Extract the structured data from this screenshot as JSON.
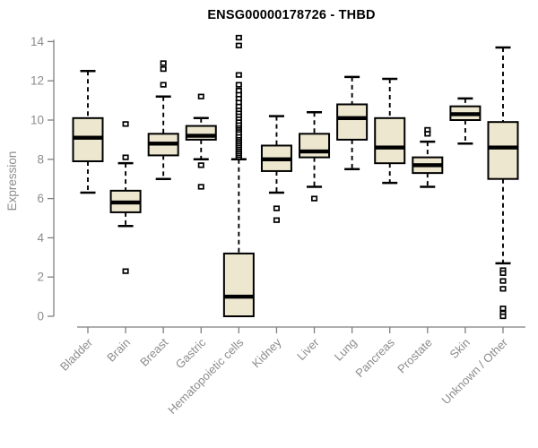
{
  "chart_data": {
    "type": "boxplot",
    "title": "ENSG00000178726 - THBD",
    "xlabel": "",
    "ylabel": "Expression",
    "ylim": [
      0,
      14
    ],
    "y_ticks": [
      0,
      2,
      4,
      6,
      8,
      10,
      12,
      14
    ],
    "grid": false,
    "legend": false,
    "categories": [
      "Bladder",
      "Brain",
      "Breast",
      "Gastric",
      "Hematopoietic cells",
      "Kidney",
      "Liver",
      "Lung",
      "Pancreas",
      "Prostate",
      "Skin",
      "Unknown / Other"
    ],
    "series": [
      {
        "name": "Bladder",
        "whisker_low": 6.3,
        "q1": 7.9,
        "median": 9.1,
        "q3": 10.1,
        "whisker_high": 12.5,
        "outliers": []
      },
      {
        "name": "Brain",
        "whisker_low": 4.6,
        "q1": 5.3,
        "median": 5.8,
        "q3": 6.4,
        "whisker_high": 7.8,
        "outliers": [
          9.8,
          8.1,
          2.3
        ]
      },
      {
        "name": "Breast",
        "whisker_low": 7.0,
        "q1": 8.2,
        "median": 8.8,
        "q3": 9.3,
        "whisker_high": 11.2,
        "outliers": [
          12.9,
          12.6,
          11.8
        ]
      },
      {
        "name": "Gastric",
        "whisker_low": 8.0,
        "q1": 9.0,
        "median": 9.2,
        "q3": 9.7,
        "whisker_high": 10.1,
        "outliers": [
          11.2,
          7.7,
          6.6
        ]
      },
      {
        "name": "Hematopoietic cells",
        "whisker_low": 0.0,
        "q1": 0.0,
        "median": 1.0,
        "q3": 3.2,
        "whisker_high": 8.0,
        "outliers": [
          8.1,
          8.2,
          8.3,
          8.4,
          8.5,
          8.6,
          8.7,
          8.8,
          8.9,
          9.0,
          9.1,
          9.2,
          9.35,
          9.5,
          9.6,
          9.7,
          9.8,
          9.95,
          10.1,
          10.25,
          10.4,
          10.55,
          10.7,
          10.9,
          11.1,
          11.3,
          11.5,
          11.8,
          12.3,
          13.8,
          14.2
        ]
      },
      {
        "name": "Kidney",
        "whisker_low": 6.3,
        "q1": 7.4,
        "median": 8.0,
        "q3": 8.7,
        "whisker_high": 10.2,
        "outliers": [
          5.5,
          4.9
        ]
      },
      {
        "name": "Liver",
        "whisker_low": 6.6,
        "q1": 8.1,
        "median": 8.4,
        "q3": 9.3,
        "whisker_high": 10.4,
        "outliers": [
          6.0
        ]
      },
      {
        "name": "Lung",
        "whisker_low": 7.5,
        "q1": 9.0,
        "median": 10.1,
        "q3": 10.8,
        "whisker_high": 12.2,
        "outliers": []
      },
      {
        "name": "Pancreas",
        "whisker_low": 6.8,
        "q1": 7.8,
        "median": 8.6,
        "q3": 10.1,
        "whisker_high": 12.1,
        "outliers": []
      },
      {
        "name": "Prostate",
        "whisker_low": 6.6,
        "q1": 7.3,
        "median": 7.7,
        "q3": 8.1,
        "whisker_high": 8.9,
        "outliers": [
          9.5,
          9.3
        ]
      },
      {
        "name": "Skin",
        "whisker_low": 8.8,
        "q1": 10.0,
        "median": 10.3,
        "q3": 10.7,
        "whisker_high": 11.1,
        "outliers": []
      },
      {
        "name": "Unknown / Other",
        "whisker_low": 2.7,
        "q1": 7.0,
        "median": 8.6,
        "q3": 9.9,
        "whisker_high": 13.7,
        "outliers": [
          2.35,
          2.2,
          1.8,
          1.4,
          0.4,
          0.15,
          0.0
        ]
      }
    ],
    "colors": {
      "box_fill": "#EDE7CF",
      "box_border": "#000000",
      "median": "#000000",
      "whisker": "#000000",
      "axis_line": "#7F7F7F",
      "axis_text": "#8C8C8C",
      "title": "#000000",
      "background": "#FFFFFF"
    }
  }
}
